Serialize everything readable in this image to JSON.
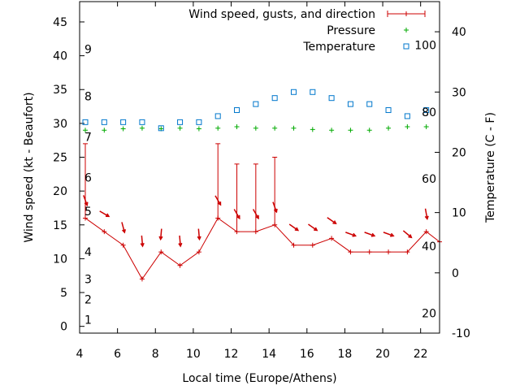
{
  "chart_data": {
    "type": "line",
    "xlabel": "Local time (Europe/Athens)",
    "ylabel": "Wind speed (kt - Beaufort)",
    "y2label": "Temperature (C - F)",
    "xlim": [
      4,
      23
    ],
    "ylim": [
      -1,
      48
    ],
    "y2lim": [
      -10,
      45
    ],
    "x_ticks": [
      4,
      6,
      8,
      10,
      12,
      14,
      16,
      18,
      20,
      22
    ],
    "y_ticks": [
      0,
      5,
      10,
      15,
      20,
      25,
      30,
      35,
      40,
      45
    ],
    "y2_ticks": [
      -10,
      0,
      10,
      20,
      30,
      40
    ],
    "beaufort_labels": [
      {
        "text": "1",
        "kt": 1
      },
      {
        "text": "2",
        "kt": 4
      },
      {
        "text": "3",
        "kt": 7
      },
      {
        "text": "4",
        "kt": 11
      },
      {
        "text": "5",
        "kt": 17
      },
      {
        "text": "6",
        "kt": 22
      },
      {
        "text": "7",
        "kt": 28
      },
      {
        "text": "8",
        "kt": 34
      },
      {
        "text": "9",
        "kt": 41
      }
    ],
    "fahrenheit_labels": [
      {
        "text": "20",
        "c": -6.7
      },
      {
        "text": "40",
        "c": 4.4
      },
      {
        "text": "60",
        "c": 15.6
      },
      {
        "text": "80",
        "c": 26.7
      },
      {
        "text": "100",
        "c": 37.8
      }
    ],
    "legend": [
      {
        "name": "Wind speed, gusts, and direction",
        "color": "#cc0000",
        "marker": "errorbar"
      },
      {
        "name": "Pressure",
        "color": "#00aa00",
        "marker": "plus"
      },
      {
        "name": "Temperature",
        "color": "#0077cc",
        "marker": "square"
      }
    ],
    "series": [
      {
        "name": "Wind speed, gusts, and direction",
        "color": "#cc0000",
        "x": [
          4.3,
          5.3,
          6.3,
          7.3,
          8.3,
          9.3,
          10.3,
          11.3,
          12.3,
          13.3,
          14.3,
          15.3,
          16.3,
          17.3,
          18.3,
          19.3,
          20.3,
          21.3,
          22.3,
          23.0
        ],
        "values": [
          16,
          14,
          12,
          7,
          11,
          9,
          11,
          16,
          14,
          14,
          15,
          12,
          12,
          13,
          11,
          11,
          11,
          11,
          14,
          12.5
        ],
        "gusts": [
          27,
          null,
          null,
          null,
          null,
          null,
          null,
          27,
          24,
          24,
          25,
          null,
          null,
          null,
          null,
          null,
          null,
          null,
          null,
          null
        ],
        "direction_deg": [
          340,
          300,
          345,
          355,
          5,
          355,
          355,
          330,
          330,
          330,
          340,
          305,
          305,
          305,
          290,
          290,
          290,
          310,
          350,
          null
        ]
      },
      {
        "name": "Pressure",
        "color": "#00aa00",
        "x": [
          4.3,
          5.3,
          6.3,
          7.3,
          8.3,
          9.3,
          10.3,
          11.3,
          12.3,
          13.3,
          14.3,
          15.3,
          16.3,
          17.3,
          18.3,
          19.3,
          20.3,
          21.3,
          22.3
        ],
        "values": [
          29.0,
          29.0,
          29.2,
          29.3,
          29.2,
          29.3,
          29.2,
          29.3,
          29.5,
          29.3,
          29.3,
          29.3,
          29.1,
          29.0,
          29.0,
          29.0,
          29.3,
          29.5,
          29.5
        ]
      },
      {
        "name": "Temperature",
        "color": "#0077cc",
        "x": [
          4.3,
          5.3,
          6.3,
          7.3,
          8.3,
          9.3,
          10.3,
          11.3,
          12.3,
          13.3,
          14.3,
          15.3,
          16.3,
          17.3,
          18.3,
          19.3,
          20.3,
          21.3,
          22.3
        ],
        "values": [
          25,
          25,
          25,
          25,
          24,
          25,
          25,
          26,
          27,
          28,
          29,
          30,
          30,
          29,
          28,
          28,
          27,
          26,
          27
        ]
      }
    ]
  }
}
